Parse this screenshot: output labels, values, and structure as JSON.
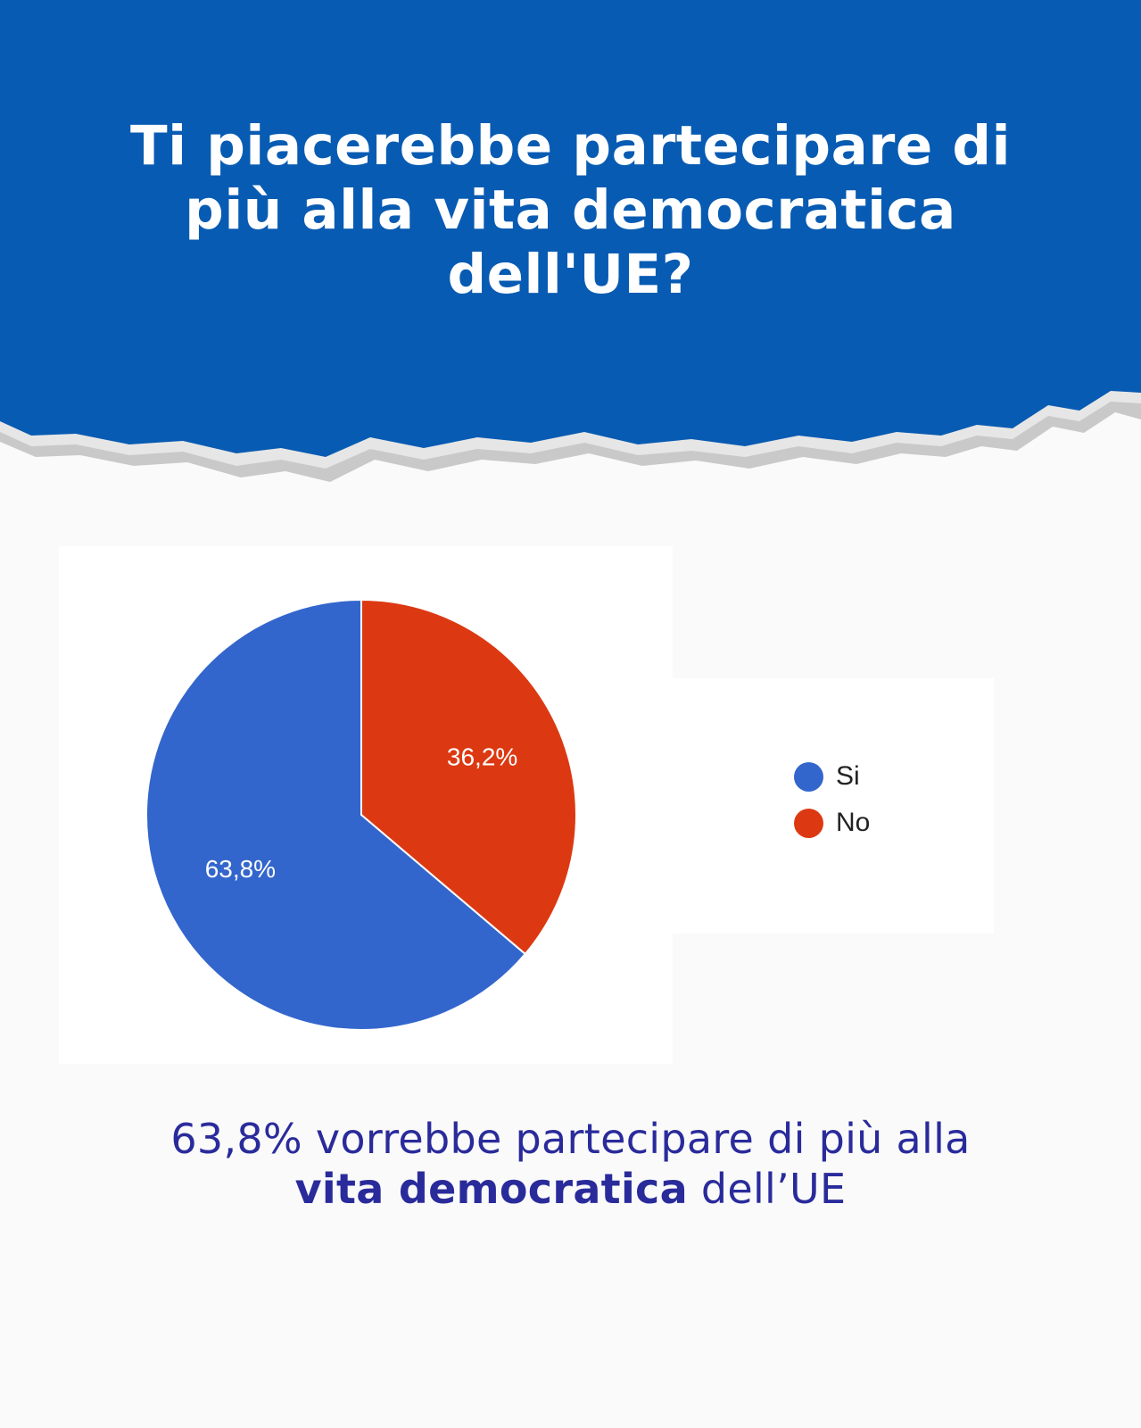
{
  "header": {
    "title": "Ti piacerebbe partecipare di più alla vita democratica dell'UE?",
    "background_color": "#085bb2"
  },
  "chart_data": {
    "type": "pie",
    "categories": [
      "Si",
      "No"
    ],
    "values": [
      63.8,
      36.2
    ],
    "value_labels": [
      "63,8%",
      "36,2%"
    ],
    "colors": [
      "#3366cc",
      "#dc3912"
    ],
    "legend_position": "right",
    "start_angle_deg": 90,
    "direction": "clockwise",
    "slice_order": [
      "No",
      "Si"
    ]
  },
  "caption": {
    "part1": "63,8% vorrebbe partecipare di più alla ",
    "bold": "vita democratica",
    "part2": " dell’UE"
  }
}
